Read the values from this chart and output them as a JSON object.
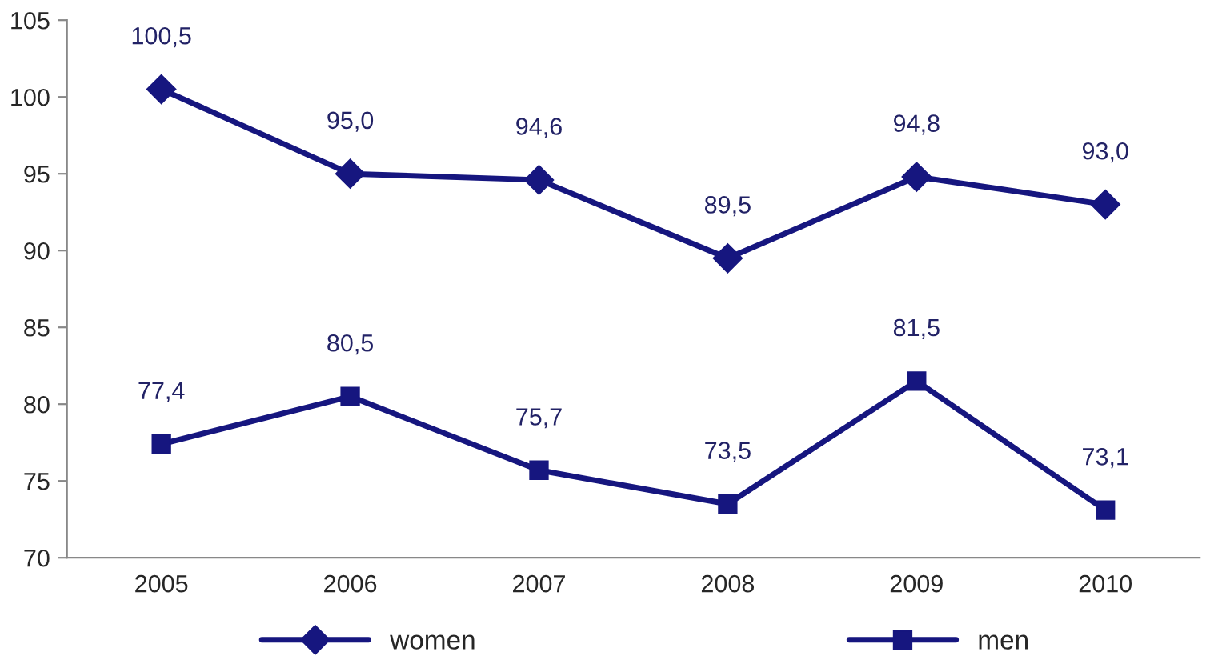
{
  "chart_data": {
    "type": "line",
    "categories": [
      "2005",
      "2006",
      "2007",
      "2008",
      "2009",
      "2010"
    ],
    "series": [
      {
        "name": "women",
        "color": "#16167f",
        "marker": "diamond",
        "values": [
          100.5,
          95.0,
          94.6,
          89.5,
          94.8,
          93.0
        ],
        "value_labels": [
          "100,5",
          "95,0",
          "94,6",
          "89,5",
          "94,8",
          "93,0"
        ]
      },
      {
        "name": "men",
        "color": "#16167f",
        "marker": "square",
        "values": [
          77.4,
          80.5,
          75.7,
          73.5,
          81.5,
          73.1
        ],
        "value_labels": [
          "77,4",
          "80,5",
          "75,7",
          "73,5",
          "81,5",
          "73,1"
        ]
      }
    ],
    "ylim": [
      70,
      105
    ],
    "yticks": [
      70,
      75,
      80,
      85,
      90,
      95,
      100,
      105
    ],
    "grid": false,
    "legend": "bottom",
    "line_style": "solid"
  }
}
